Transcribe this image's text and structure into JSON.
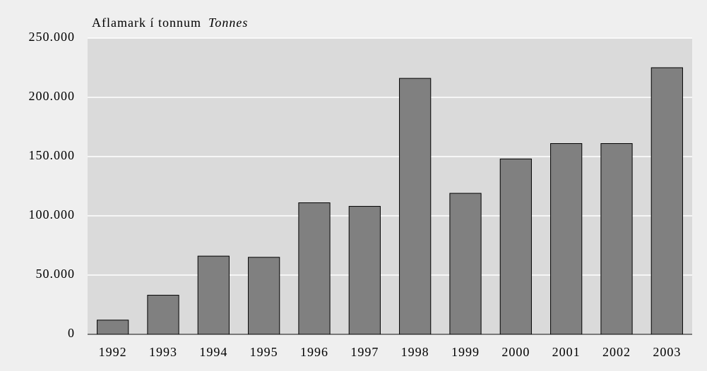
{
  "chart_data": {
    "type": "bar",
    "title": "Aflamark í tonnum",
    "subtitle": "Tonnes",
    "categories": [
      "1992",
      "1993",
      "1994",
      "1995",
      "1996",
      "1997",
      "1998",
      "1999",
      "2000",
      "2001",
      "2002",
      "2003"
    ],
    "values": [
      12000,
      33000,
      66000,
      65000,
      111000,
      108000,
      216000,
      119000,
      148000,
      161000,
      161000,
      225000
    ],
    "color": "#808080",
    "ylim": [
      0,
      250000
    ],
    "yticks": [
      0,
      {
        "value": 50000,
        "label": "50.000"
      },
      {
        "value": 100000,
        "label": "100.000"
      },
      {
        "value": 150000,
        "label": "150.000"
      },
      {
        "value": 200000,
        "label": "200.000"
      },
      {
        "value": 250000,
        "label": "250.000"
      }
    ],
    "grid": true
  }
}
